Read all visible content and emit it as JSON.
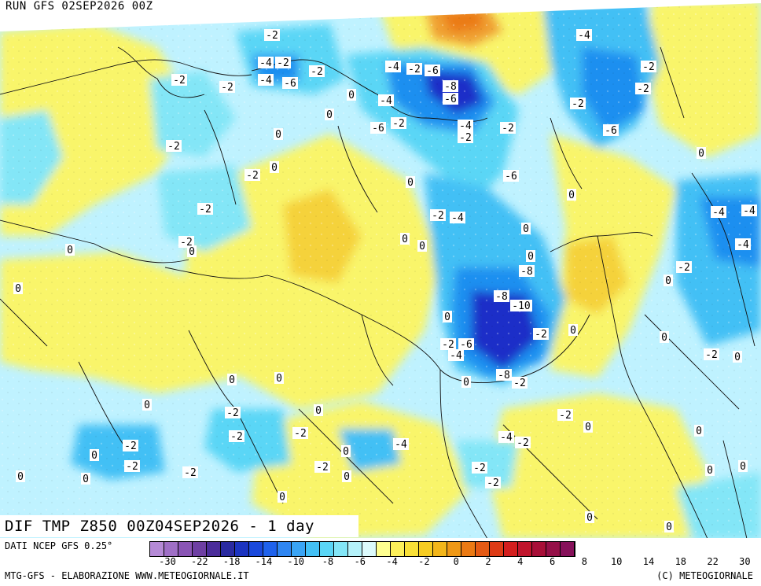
{
  "header": {
    "run_title": "RUN GFS 02SEP2026 00Z"
  },
  "footer": {
    "field_title": "DIF TMP Z850 00Z04SEP2026 - 1 day",
    "source": "DATI NCEP GFS 0.25°",
    "credit_left": "MTG-GFS - ELABORAZIONE WWW.METEOGIORNALE.IT",
    "credit_right": "(C) METEOGIORNALE"
  },
  "colors": {
    "cold_strong": "#1a2fc8",
    "cold_mid": "#1f8ff0",
    "cold_light": "#7fd8f5",
    "neutral_pale": "#bff2ff",
    "warm_light": "#f9f56a",
    "warm_mid": "#f5d23a",
    "warm_strong": "#f0a030",
    "coast_line": "#111111"
  },
  "legend": {
    "ticks": [
      "-30",
      "-22",
      "-18",
      "-14",
      "-10",
      "-8",
      "-6",
      "-4",
      "-2",
      "0",
      "2",
      "4",
      "6",
      "8",
      "10",
      "14",
      "18",
      "22",
      "30"
    ],
    "swatches": [
      "#b58ad6",
      "#9f6fc6",
      "#8a55b5",
      "#6e3fa3",
      "#4b2d9a",
      "#2a2aa0",
      "#1c34c0",
      "#1a49dc",
      "#1f62ec",
      "#2f86f2",
      "#3aa4f4",
      "#43c0f5",
      "#5ad6f6",
      "#83e6f7",
      "#b5f2fa",
      "#dcfafc",
      "#ffff90",
      "#fdf05a",
      "#f9e037",
      "#f6cc22",
      "#f3b61a",
      "#ef9816",
      "#eb7a14",
      "#e55a14",
      "#dd3b16",
      "#d31e1e",
      "#c0142c",
      "#a80f38",
      "#951048",
      "#86115a"
    ]
  },
  "contour_labels": [
    {
      "text": "-2"
    },
    {
      "text": "-2"
    },
    {
      "text": "-4"
    },
    {
      "text": "-2"
    },
    {
      "text": "-4"
    },
    {
      "text": "-6"
    },
    {
      "text": "-2"
    },
    {
      "text": "-2"
    },
    {
      "text": "-4"
    },
    {
      "text": "-2"
    },
    {
      "text": "-6"
    },
    {
      "text": "-8"
    },
    {
      "text": "-6"
    },
    {
      "text": "-4"
    },
    {
      "text": "-6"
    },
    {
      "text": "-2"
    },
    {
      "text": "-4"
    },
    {
      "text": "-2"
    },
    {
      "text": "-2"
    },
    {
      "text": "-6"
    },
    {
      "text": "-4"
    },
    {
      "text": "-2"
    },
    {
      "text": "-6"
    },
    {
      "text": "-2"
    },
    {
      "text": "-2"
    },
    {
      "text": "-2"
    },
    {
      "text": "-2"
    },
    {
      "text": "-4"
    },
    {
      "text": "-2"
    },
    {
      "text": "-2"
    },
    {
      "text": "-4"
    },
    {
      "text": "-2"
    },
    {
      "text": "-8"
    },
    {
      "text": "-8"
    },
    {
      "text": "-10"
    },
    {
      "text": "-2"
    },
    {
      "text": "-2"
    },
    {
      "text": "-6"
    },
    {
      "text": "-4"
    },
    {
      "text": "-8"
    },
    {
      "text": "-2"
    },
    {
      "text": "-2"
    },
    {
      "text": "-2"
    },
    {
      "text": "-4"
    },
    {
      "text": "-2"
    },
    {
      "text": "-2"
    },
    {
      "text": "-2"
    },
    {
      "text": "-2"
    },
    {
      "text": "-2"
    },
    {
      "text": "-4"
    },
    {
      "text": "-2"
    },
    {
      "text": "-2"
    },
    {
      "text": "-2"
    },
    {
      "text": "-2"
    },
    {
      "text": "-2"
    },
    {
      "text": "-2"
    },
    {
      "text": "-4"
    },
    {
      "text": "-4"
    },
    {
      "text": "0"
    },
    {
      "text": "0"
    },
    {
      "text": "0"
    },
    {
      "text": "0"
    },
    {
      "text": "0"
    },
    {
      "text": "0"
    },
    {
      "text": "0"
    },
    {
      "text": "0"
    },
    {
      "text": "0"
    },
    {
      "text": "0"
    },
    {
      "text": "0"
    },
    {
      "text": "0"
    },
    {
      "text": "0"
    },
    {
      "text": "0"
    },
    {
      "text": "0"
    },
    {
      "text": "0"
    },
    {
      "text": "0"
    },
    {
      "text": "0"
    },
    {
      "text": "0"
    },
    {
      "text": "0"
    },
    {
      "text": "0"
    },
    {
      "text": "0"
    },
    {
      "text": "0"
    },
    {
      "text": "0"
    },
    {
      "text": "0"
    },
    {
      "text": "0"
    },
    {
      "text": "0"
    },
    {
      "text": "0"
    },
    {
      "text": "0"
    },
    {
      "text": "0"
    },
    {
      "text": "0"
    },
    {
      "text": "0"
    },
    {
      "text": "0"
    },
    {
      "text": "0"
    },
    {
      "text": "0"
    },
    {
      "text": "0"
    }
  ]
}
